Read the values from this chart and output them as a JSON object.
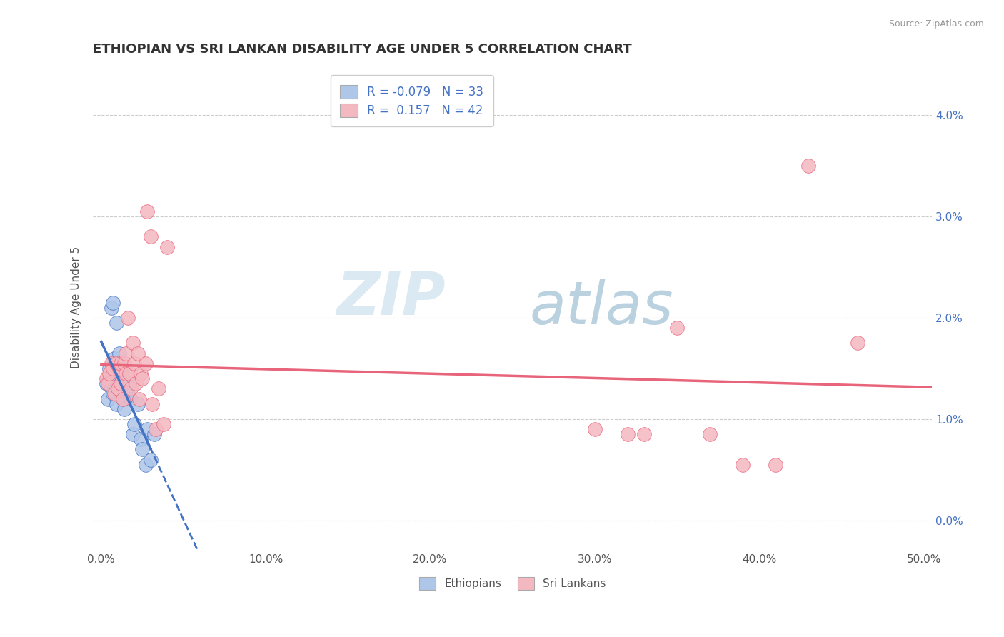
{
  "title": "ETHIOPIAN VS SRI LANKAN DISABILITY AGE UNDER 5 CORRELATION CHART",
  "source": "Source: ZipAtlas.com",
  "ylabel": "Disability Age Under 5",
  "xlim": [
    -0.005,
    0.505
  ],
  "ylim": [
    -0.003,
    0.045
  ],
  "legend_r_ethiopians": "-0.079",
  "legend_n_ethiopians": "33",
  "legend_r_srilankans": "0.157",
  "legend_n_srilankans": "42",
  "color_ethiopians": "#aec6e8",
  "color_srilankans": "#f4b8c1",
  "line_color_ethiopians": "#4472c4",
  "line_color_srilankans": "#e8647a",
  "watermark_zip": "ZIP",
  "watermark_atlas": "atlas",
  "background_color": "#ffffff",
  "grid_color": "#cccccc",
  "ethiopians_x": [
    0.003,
    0.004,
    0.005,
    0.005,
    0.006,
    0.006,
    0.007,
    0.007,
    0.008,
    0.008,
    0.009,
    0.009,
    0.01,
    0.01,
    0.011,
    0.011,
    0.012,
    0.012,
    0.013,
    0.014,
    0.015,
    0.016,
    0.017,
    0.018,
    0.019,
    0.02,
    0.022,
    0.024,
    0.025,
    0.027,
    0.028,
    0.03,
    0.032
  ],
  "ethiopians_y": [
    0.0135,
    0.012,
    0.014,
    0.015,
    0.013,
    0.021,
    0.0125,
    0.0215,
    0.0145,
    0.016,
    0.0115,
    0.0195,
    0.013,
    0.0155,
    0.014,
    0.0165,
    0.0135,
    0.0145,
    0.012,
    0.011,
    0.0135,
    0.0125,
    0.0135,
    0.012,
    0.0085,
    0.0095,
    0.0115,
    0.008,
    0.007,
    0.0055,
    0.009,
    0.006,
    0.0085
  ],
  "srilankans_x": [
    0.003,
    0.004,
    0.005,
    0.006,
    0.007,
    0.008,
    0.009,
    0.01,
    0.011,
    0.012,
    0.012,
    0.013,
    0.014,
    0.015,
    0.015,
    0.016,
    0.017,
    0.018,
    0.019,
    0.02,
    0.021,
    0.022,
    0.023,
    0.024,
    0.025,
    0.027,
    0.028,
    0.03,
    0.031,
    0.033,
    0.035,
    0.038,
    0.04,
    0.3,
    0.32,
    0.33,
    0.35,
    0.37,
    0.39,
    0.41,
    0.43,
    0.46
  ],
  "srilankans_y": [
    0.014,
    0.0135,
    0.0145,
    0.0155,
    0.015,
    0.0125,
    0.0155,
    0.013,
    0.015,
    0.0135,
    0.0155,
    0.012,
    0.0155,
    0.0145,
    0.0165,
    0.02,
    0.0145,
    0.013,
    0.0175,
    0.0155,
    0.0135,
    0.0165,
    0.012,
    0.0145,
    0.014,
    0.0155,
    0.0305,
    0.028,
    0.0115,
    0.009,
    0.013,
    0.0095,
    0.027,
    0.009,
    0.0085,
    0.0085,
    0.019,
    0.0085,
    0.0055,
    0.0055,
    0.035,
    0.0175
  ]
}
